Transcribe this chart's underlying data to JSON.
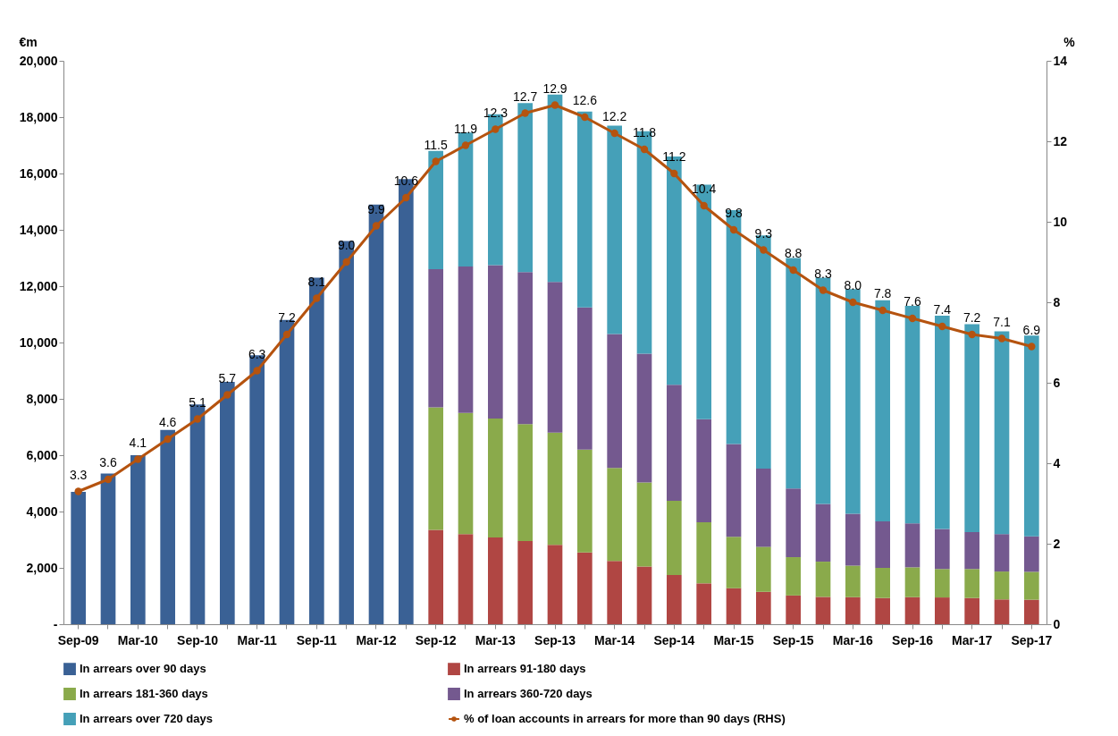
{
  "chart_data": {
    "type": "bar",
    "stacked": true,
    "ylabel": "€m",
    "y2label": "%",
    "categories": [
      "Sep-09",
      null,
      "Mar-10",
      null,
      "Sep-10",
      null,
      "Mar-11",
      null,
      "Sep-11",
      null,
      "Mar-12",
      null,
      "Sep-12",
      null,
      "Mar-13",
      null,
      "Sep-13",
      null,
      "Mar-14",
      null,
      "Sep-14",
      null,
      "Mar-15",
      null,
      "Sep-15",
      null,
      "Mar-16",
      null,
      "Sep-16",
      null,
      "Mar-17",
      null,
      "Sep-17"
    ],
    "series": [
      {
        "name": "In arrears over 90 days",
        "color": "#3a6195",
        "values": [
          4700,
          5350,
          6000,
          6900,
          7800,
          8600,
          9550,
          10800,
          12300,
          13600,
          14900,
          15800,
          null,
          null,
          null,
          null,
          null,
          null,
          null,
          null,
          null,
          null,
          null,
          null,
          null,
          null,
          null,
          null,
          null,
          null,
          null,
          null,
          null
        ]
      },
      {
        "name": "In arrears 91-180 days",
        "color": "#b04643",
        "values": [
          null,
          null,
          null,
          null,
          null,
          null,
          null,
          null,
          null,
          null,
          null,
          null,
          3350,
          3200,
          3080,
          2950,
          2820,
          2550,
          2250,
          2050,
          1750,
          1450,
          1280,
          1150,
          1020,
          970,
          960,
          930,
          960,
          950,
          930,
          880,
          870
        ]
      },
      {
        "name": "In arrears 181-360 days",
        "color": "#8aaa4b",
        "values": [
          null,
          null,
          null,
          null,
          null,
          null,
          null,
          null,
          null,
          null,
          null,
          null,
          4350,
          4300,
          4220,
          4150,
          3980,
          3650,
          3300,
          2980,
          2630,
          2170,
          1820,
          1600,
          1360,
          1250,
          1120,
          1070,
          1060,
          1010,
          1030,
          990,
          990
        ]
      },
      {
        "name": "In arrears 360-720 days",
        "color": "#74598f",
        "values": [
          null,
          null,
          null,
          null,
          null,
          null,
          null,
          null,
          null,
          null,
          null,
          null,
          4900,
          5200,
          5450,
          5400,
          5350,
          5050,
          4750,
          4570,
          4120,
          3660,
          3300,
          2770,
          2440,
          2050,
          1840,
          1650,
          1560,
          1420,
          1310,
          1330,
          1260
        ]
      },
      {
        "name": "In arrears over 720 days",
        "color": "#45a0b8",
        "values": [
          null,
          null,
          null,
          null,
          null,
          null,
          null,
          null,
          null,
          null,
          null,
          null,
          4200,
          4750,
          5350,
          6000,
          6650,
          6950,
          7400,
          7900,
          8100,
          8320,
          8300,
          8280,
          8180,
          8030,
          7980,
          7850,
          7720,
          7570,
          7380,
          7200,
          7130
        ]
      },
      {
        "name": "% of loan accounts in arrears for more than 90 days (RHS)",
        "color": "#b5530f",
        "type": "line",
        "axis": "y2",
        "values": [
          3.3,
          3.6,
          4.1,
          4.6,
          5.1,
          5.7,
          6.3,
          7.2,
          8.1,
          9.0,
          9.9,
          10.6,
          11.5,
          11.9,
          12.3,
          12.7,
          12.9,
          12.6,
          12.2,
          11.8,
          11.2,
          10.4,
          9.8,
          9.3,
          8.8,
          8.3,
          8.0,
          7.8,
          7.6,
          7.4,
          7.2,
          7.1,
          6.9
        ],
        "value_labels": [
          "3.3",
          "3.6",
          "4.1",
          "4.6",
          "5.1",
          "5.7",
          "6.3",
          "7.2",
          "8.1",
          "9.0",
          "9.9",
          "10.6",
          "11.5",
          "11.9",
          "12.3",
          "12.7",
          "12.9",
          "12.6",
          "12.2",
          "11.8",
          "11.2",
          "10.4",
          "9.8",
          "9.3",
          "8.8",
          "8.3",
          "8.0",
          "7.8",
          "7.6",
          "7.4",
          "7.2",
          "7.1",
          "6.9"
        ]
      }
    ],
    "ylim": [
      0,
      20000
    ],
    "yticks": [
      {
        "value": 0,
        "label": "-"
      },
      {
        "value": 2000,
        "label": "2,000"
      },
      {
        "value": 4000,
        "label": "4,000"
      },
      {
        "value": 6000,
        "label": "6,000"
      },
      {
        "value": 8000,
        "label": "8,000"
      },
      {
        "value": 10000,
        "label": "10,000"
      },
      {
        "value": 12000,
        "label": "12,000"
      },
      {
        "value": 14000,
        "label": "14,000"
      },
      {
        "value": 16000,
        "label": "16,000"
      },
      {
        "value": 18000,
        "label": "18,000"
      },
      {
        "value": 20000,
        "label": "20,000"
      }
    ],
    "y2lim": [
      0,
      14
    ],
    "y2ticks": [
      0,
      2,
      4,
      6,
      8,
      10,
      12,
      14
    ],
    "marker": "circle",
    "legend": "bottom",
    "grid": false
  }
}
